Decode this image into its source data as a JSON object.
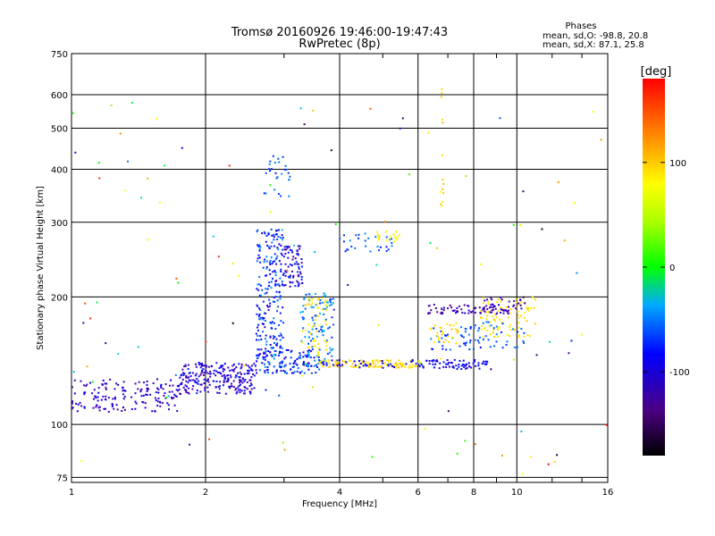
{
  "chart_data": {
    "type": "scatter",
    "title": "Tromsø 20160926 19:46:00-19:47:43",
    "subtitle": "RwPretec (8p)",
    "xlabel": "Frequency [MHz]",
    "ylabel": "Stationary phase Virtual Height [km]",
    "x_scale": "log",
    "y_scale": "log",
    "xlim": [
      1,
      16
    ],
    "ylim": [
      73,
      750
    ],
    "x_ticks": [
      1,
      2,
      4,
      6,
      8,
      10,
      16
    ],
    "y_ticks": [
      75,
      100,
      200,
      300,
      400,
      500,
      600,
      750
    ],
    "grid": true,
    "stats": {
      "title": "Phases",
      "line_o": "mean, sd,O: -98.8, 20.8",
      "line_x": "mean, sd,X: 87.1, 25.8"
    },
    "colorbar": {
      "label": "[deg]",
      "range": [
        -180,
        180
      ],
      "ticks": [
        100,
        0,
        -100
      ],
      "tick_labels": [
        "100",
        "0",
        "-100"
      ]
    },
    "clusters": [
      {
        "f": [
          1.0,
          1.75
        ],
        "h": [
          107,
          128
        ],
        "phase": [
          -140,
          -100
        ],
        "n": 160
      },
      {
        "f": [
          1.75,
          2.6
        ],
        "h": [
          118,
          140
        ],
        "phase": [
          -140,
          -90
        ],
        "n": 230
      },
      {
        "f": [
          2.6,
          3.6
        ],
        "h": [
          132,
          150
        ],
        "phase": [
          -120,
          -60
        ],
        "n": 140
      },
      {
        "f": [
          2.6,
          3.0
        ],
        "h": [
          150,
          290
        ],
        "phase": [
          -120,
          -60
        ],
        "n": 210
      },
      {
        "f": [
          3.0,
          3.3
        ],
        "h": [
          210,
          265
        ],
        "phase": [
          -150,
          -80
        ],
        "n": 70
      },
      {
        "f": [
          3.25,
          3.9
        ],
        "h": [
          140,
          205
        ],
        "phase": [
          -90,
          -40
        ],
        "n": 90
      },
      {
        "f": [
          3.3,
          3.75
        ],
        "h": [
          145,
          200
        ],
        "phase": [
          80,
          120
        ],
        "n": 50
      },
      {
        "f": [
          3.6,
          6.2
        ],
        "h": [
          136,
          142
        ],
        "phase": [
          90,
          125
        ],
        "n": 110
      },
      {
        "f": [
          3.6,
          6.2
        ],
        "h": [
          136,
          142
        ],
        "phase": [
          -120,
          -90
        ],
        "n": 40
      },
      {
        "f": [
          4.0,
          5.3
        ],
        "h": [
          255,
          285
        ],
        "phase": [
          -100,
          -60
        ],
        "n": 30
      },
      {
        "f": [
          4.8,
          5.5
        ],
        "h": [
          270,
          285
        ],
        "phase": [
          70,
          110
        ],
        "n": 20
      },
      {
        "f": [
          6.0,
          8.6
        ],
        "h": [
          135,
          142
        ],
        "phase": [
          -120,
          -90
        ],
        "n": 70
      },
      {
        "f": [
          6.2,
          9.8
        ],
        "h": [
          182,
          192
        ],
        "phase": [
          -150,
          -110
        ],
        "n": 70
      },
      {
        "f": [
          6.4,
          8.3
        ],
        "h": [
          150,
          170
        ],
        "phase": [
          -100,
          -60
        ],
        "n": 40
      },
      {
        "f": [
          6.4,
          7.4
        ],
        "h": [
          155,
          175
        ],
        "phase": [
          90,
          120
        ],
        "n": 30
      },
      {
        "f": [
          8.3,
          11.0
        ],
        "h": [
          160,
          200
        ],
        "phase": [
          90,
          120
        ],
        "n": 80
      },
      {
        "f": [
          8.4,
          10.5
        ],
        "h": [
          185,
          200
        ],
        "phase": [
          -150,
          -110
        ],
        "n": 30
      },
      {
        "f": [
          8.0,
          10.5
        ],
        "h": [
          150,
          175
        ],
        "phase": [
          -90,
          -60
        ],
        "n": 30
      },
      {
        "f": [
          2.7,
          3.1
        ],
        "h": [
          345,
          440
        ],
        "phase": [
          -100,
          -60
        ],
        "n": 28
      },
      {
        "f": [
          6.7,
          6.85
        ],
        "h": [
          320,
          650
        ],
        "phase": [
          90,
          130
        ],
        "n": 14
      },
      {
        "f": [
          1.0,
          16.0
        ],
        "h": [
          75,
          600
        ],
        "phase": [
          -180,
          180
        ],
        "n": 110
      }
    ]
  }
}
